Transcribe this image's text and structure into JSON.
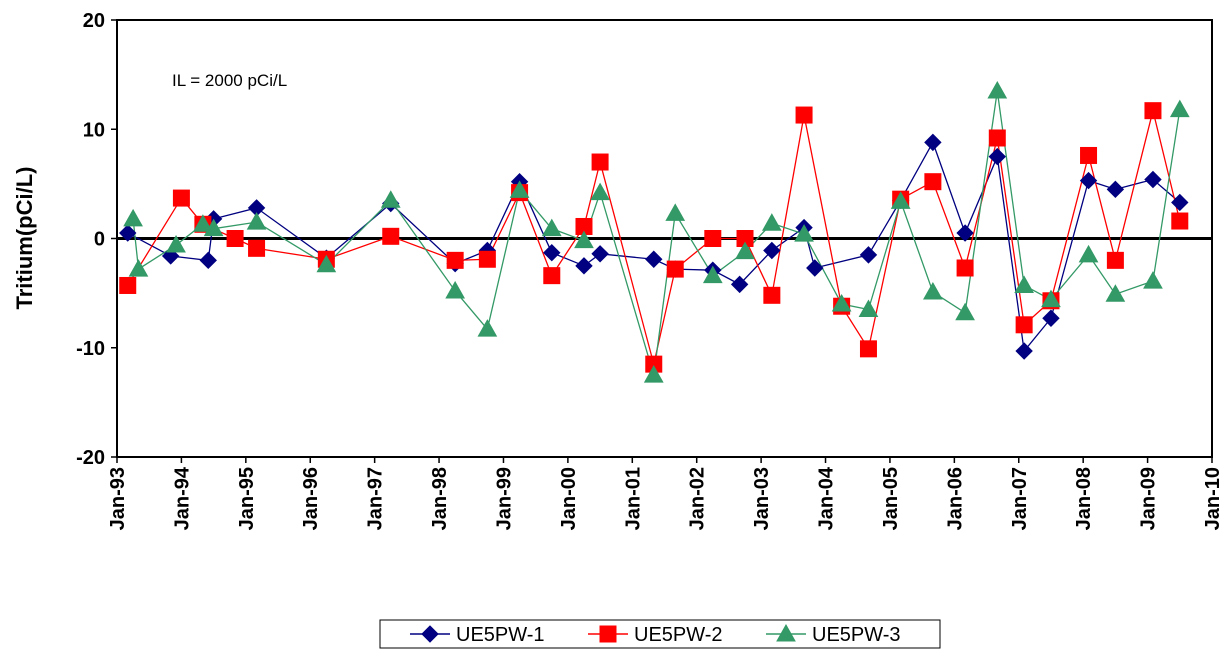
{
  "chart_data": {
    "type": "line",
    "y_label": "Tritium(pCi/L)",
    "annotation": "IL = 2000  pCi/L",
    "xlim": [
      0,
      204
    ],
    "xticks": [
      {
        "value": 0,
        "label": "Jan-93"
      },
      {
        "value": 12,
        "label": "Jan-94"
      },
      {
        "value": 24,
        "label": "Jan-95"
      },
      {
        "value": 36,
        "label": "Jan-96"
      },
      {
        "value": 48,
        "label": "Jan-97"
      },
      {
        "value": 60,
        "label": "Jan-98"
      },
      {
        "value": 72,
        "label": "Jan-99"
      },
      {
        "value": 84,
        "label": "Jan-00"
      },
      {
        "value": 96,
        "label": "Jan-01"
      },
      {
        "value": 108,
        "label": "Jan-02"
      },
      {
        "value": 120,
        "label": "Jan-03"
      },
      {
        "value": 132,
        "label": "Jan-04"
      },
      {
        "value": 144,
        "label": "Jan-05"
      },
      {
        "value": 156,
        "label": "Jan-06"
      },
      {
        "value": 168,
        "label": "Jan-07"
      },
      {
        "value": 180,
        "label": "Jan-08"
      },
      {
        "value": 192,
        "label": "Jan-09"
      },
      {
        "value": 204,
        "label": "Jan-10"
      }
    ],
    "ylim": [
      -20,
      20
    ],
    "yticks": [
      -20,
      -10,
      0,
      10,
      20
    ],
    "zero_line": true,
    "grid": false,
    "legend": "bottom",
    "series": [
      {
        "name": "UE5PW-1",
        "color": "#000080",
        "marker": "diamond",
        "x": [
          2,
          10,
          17,
          18,
          26,
          39,
          51,
          63,
          69,
          75,
          81,
          87,
          90,
          100,
          104,
          111,
          116,
          122,
          128,
          130,
          140,
          146,
          152,
          158,
          164,
          169,
          174,
          181,
          186,
          193,
          198
        ],
        "values": [
          0.5,
          -1.6,
          -2.0,
          1.8,
          2.8,
          -1.8,
          3.2,
          -2.3,
          -1.1,
          5.2,
          -1.3,
          -2.5,
          -1.4,
          -1.9,
          -2.8,
          -2.9,
          -4.2,
          -1.1,
          1.0,
          -2.7,
          -1.5,
          3.5,
          8.8,
          0.5,
          7.5,
          -10.3,
          -7.3,
          5.3,
          4.5,
          5.4,
          3.3
        ]
      },
      {
        "name": "UE5PW-2",
        "color": "#ff0000",
        "marker": "square",
        "x": [
          2,
          12,
          16,
          22,
          26,
          39,
          51,
          63,
          69,
          75,
          81,
          87,
          90,
          100,
          104,
          111,
          117,
          122,
          128,
          135,
          140,
          146,
          152,
          158,
          164,
          169,
          174,
          181,
          186,
          193,
          198
        ],
        "values": [
          -4.3,
          3.7,
          1.3,
          0.0,
          -0.9,
          -1.9,
          0.2,
          -2.0,
          -1.9,
          4.2,
          -3.4,
          1.1,
          7.0,
          -11.5,
          -2.8,
          0.0,
          0.0,
          -5.2,
          11.3,
          -6.2,
          -10.1,
          3.6,
          5.2,
          -2.7,
          9.2,
          -7.9,
          -5.7,
          7.6,
          -2.0,
          11.7,
          1.6
        ]
      },
      {
        "name": "UE5PW-3",
        "color": "#339966",
        "marker": "triangle",
        "x": [
          3,
          4,
          11,
          16,
          18,
          26,
          39,
          51,
          63,
          69,
          75,
          81,
          87,
          90,
          100,
          104,
          111,
          117,
          122,
          128,
          135,
          140,
          146,
          152,
          158,
          164,
          169,
          174,
          181,
          186,
          193,
          198
        ],
        "values": [
          1.8,
          -2.8,
          -0.6,
          1.3,
          0.9,
          1.5,
          -2.4,
          3.5,
          -4.8,
          -8.3,
          4.4,
          0.9,
          -0.2,
          4.2,
          -12.5,
          2.3,
          -3.4,
          -1.2,
          1.4,
          0.4,
          -6.0,
          -6.5,
          3.4,
          -4.9,
          -6.8,
          13.5,
          -4.3,
          -5.6,
          -1.5,
          -5.1,
          -3.9,
          11.8
        ]
      }
    ]
  }
}
